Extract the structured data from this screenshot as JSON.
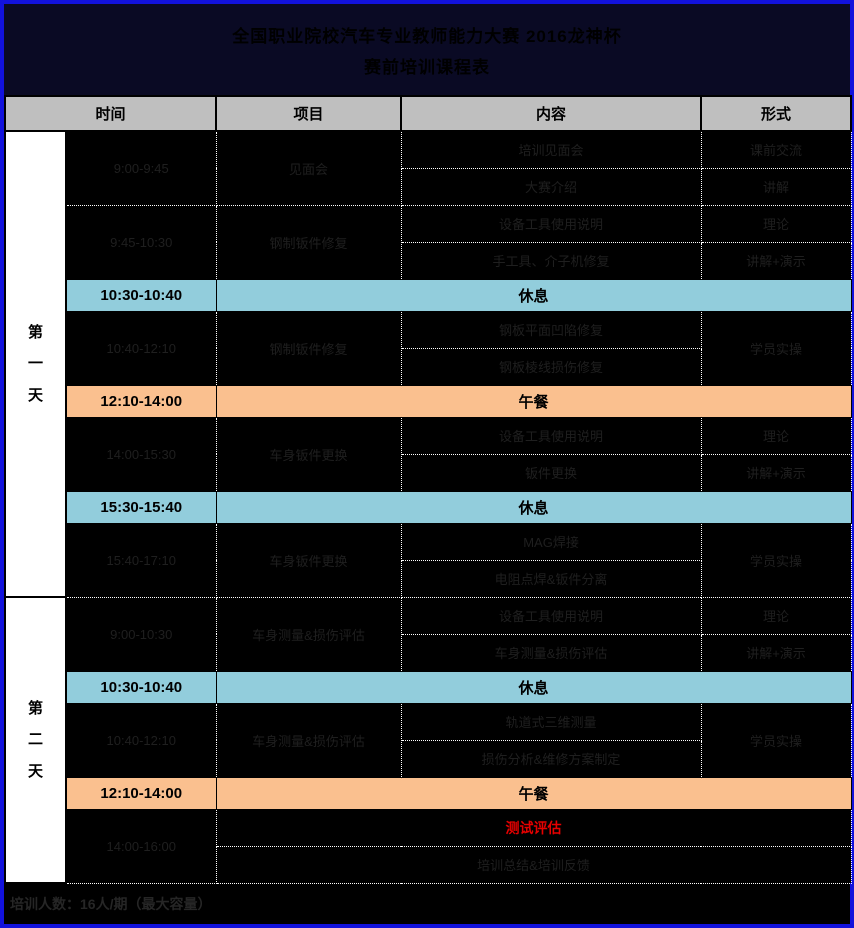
{
  "title": {
    "line1": "全国职业院校汽车专业教师能力大赛 2016龙神杯",
    "line2": "赛前培训课程表"
  },
  "header": {
    "time": "时间",
    "project": "项目",
    "content": "内容",
    "format": "形式"
  },
  "day1": {
    "label": "第一天",
    "b1": {
      "time": "9:00-9:45",
      "project": "见面会",
      "c1": "培训见面会",
      "f1": "课前交流",
      "c2": "大赛介绍",
      "f2": "讲解"
    },
    "b2": {
      "time": "9:45-10:30",
      "project": "钢制钣件修复",
      "c1": "设备工具使用说明",
      "f1": "理论",
      "c2": "手工具、介子机修复",
      "f2": "讲解+演示"
    },
    "br1": {
      "time": "10:30-10:40",
      "label": "休息"
    },
    "b3": {
      "time": "10:40-12:10",
      "project": "钢制钣件修复",
      "c1": "钢板平面凹陷修复",
      "c2": "钢板棱线损伤修复",
      "f": "学员实操"
    },
    "lunch": {
      "time": "12:10-14:00",
      "label": "午餐"
    },
    "b4": {
      "time": "14:00-15:30",
      "project": "车身钣件更换",
      "c1": "设备工具使用说明",
      "f1": "理论",
      "c2": "钣件更换",
      "f2": "讲解+演示"
    },
    "br2": {
      "time": "15:30-15:40",
      "label": "休息"
    },
    "b5": {
      "time": "15:40-17:10",
      "project": "车身钣件更换",
      "c1": "MAG焊接",
      "c2": "电阻点焊&钣件分离",
      "f": "学员实操"
    }
  },
  "day2": {
    "label": "第二天",
    "b1": {
      "time": "9:00-10:30",
      "project": "车身测量&损伤评估",
      "c1": "设备工具使用说明",
      "f1": "理论",
      "c2": "车身测量&损伤评估",
      "f2": "讲解+演示"
    },
    "br1": {
      "time": "10:30-10:40",
      "label": "休息"
    },
    "b2": {
      "time": "10:40-12:10",
      "project": "车身测量&损伤评估",
      "c1": "轨道式三维测量",
      "c2": "损伤分析&维修方案制定",
      "f": "学员实操"
    },
    "lunch": {
      "time": "12:10-14:00",
      "label": "午餐"
    },
    "b3": {
      "time": "14:00-16:00",
      "c1": "测试评估",
      "c2": "培训总结&培训反馈"
    }
  },
  "footer": {
    "note": "培训人数：16人/期（最大容量）"
  },
  "colors": {
    "page_border_blue": "#1212DC",
    "title_bg_navy": "#0A0A24",
    "header_gray": "#BFBFBF",
    "break_blue": "#92CDDC",
    "lunch_orange": "#FAC08F",
    "highlight_red": "#E60000",
    "body_bg": "#000000"
  }
}
